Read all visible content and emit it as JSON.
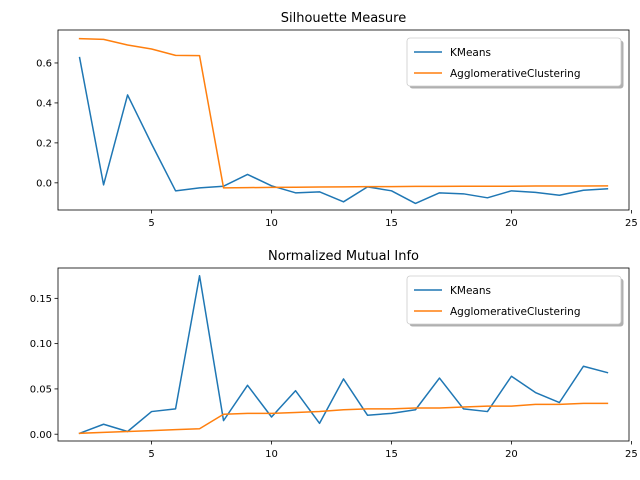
{
  "chart_data": [
    {
      "type": "line",
      "title": "Silhouette Measure",
      "xlabel": "",
      "ylabel": "",
      "x": [
        2,
        3,
        4,
        5,
        6,
        7,
        8,
        9,
        10,
        11,
        12,
        13,
        14,
        15,
        16,
        17,
        18,
        19,
        20,
        21,
        22,
        23,
        24
      ],
      "xlim": [
        1.1,
        24.9
      ],
      "ylim": [
        -0.136,
        0.765
      ],
      "xticks": [
        5,
        10,
        15,
        20,
        25
      ],
      "yticks": [
        0.0,
        0.2,
        0.4,
        0.6
      ],
      "ytick_labels": [
        "0.0",
        "0.2",
        "0.4",
        "0.6"
      ],
      "legend": "top-right",
      "series": [
        {
          "name": "KMeans",
          "color": "#1f77b4",
          "values": [
            0.627,
            -0.01,
            0.44,
            0.195,
            -0.04,
            -0.025,
            -0.017,
            0.042,
            -0.015,
            -0.05,
            -0.045,
            -0.095,
            -0.02,
            -0.04,
            -0.103,
            -0.05,
            -0.055,
            -0.075,
            -0.04,
            -0.048,
            -0.062,
            -0.037,
            -0.03
          ]
        },
        {
          "name": "AgglomerativeClustering",
          "color": "#ff7f0e",
          "values": [
            0.722,
            0.718,
            0.69,
            0.67,
            0.638,
            0.637,
            -0.025,
            -0.024,
            -0.023,
            -0.022,
            -0.021,
            -0.02,
            -0.019,
            -0.019,
            -0.018,
            -0.018,
            -0.017,
            -0.017,
            -0.017,
            -0.016,
            -0.016,
            -0.016,
            -0.015
          ]
        }
      ]
    },
    {
      "type": "line",
      "title": "Normalized Mutual Info",
      "xlabel": "",
      "ylabel": "",
      "x": [
        2,
        3,
        4,
        5,
        6,
        7,
        8,
        9,
        10,
        11,
        12,
        13,
        14,
        15,
        16,
        17,
        18,
        19,
        20,
        21,
        22,
        23,
        24
      ],
      "xlim": [
        1.1,
        24.9
      ],
      "ylim": [
        -0.0075,
        0.1835
      ],
      "xticks": [
        5,
        10,
        15,
        20,
        25
      ],
      "yticks": [
        0.0,
        0.05,
        0.1,
        0.15
      ],
      "ytick_labels": [
        "0.00",
        "0.05",
        "0.10",
        "0.15"
      ],
      "legend": "top-right",
      "series": [
        {
          "name": "KMeans",
          "color": "#1f77b4",
          "values": [
            0.001,
            0.011,
            0.003,
            0.025,
            0.028,
            0.175,
            0.015,
            0.054,
            0.019,
            0.048,
            0.012,
            0.061,
            0.021,
            0.023,
            0.027,
            0.062,
            0.028,
            0.025,
            0.064,
            0.046,
            0.035,
            0.075,
            0.068
          ]
        },
        {
          "name": "AgglomerativeClustering",
          "color": "#ff7f0e",
          "values": [
            0.001,
            0.002,
            0.003,
            0.004,
            0.005,
            0.006,
            0.022,
            0.023,
            0.023,
            0.024,
            0.025,
            0.027,
            0.028,
            0.028,
            0.029,
            0.029,
            0.03,
            0.031,
            0.031,
            0.033,
            0.033,
            0.034,
            0.034
          ]
        }
      ]
    }
  ]
}
